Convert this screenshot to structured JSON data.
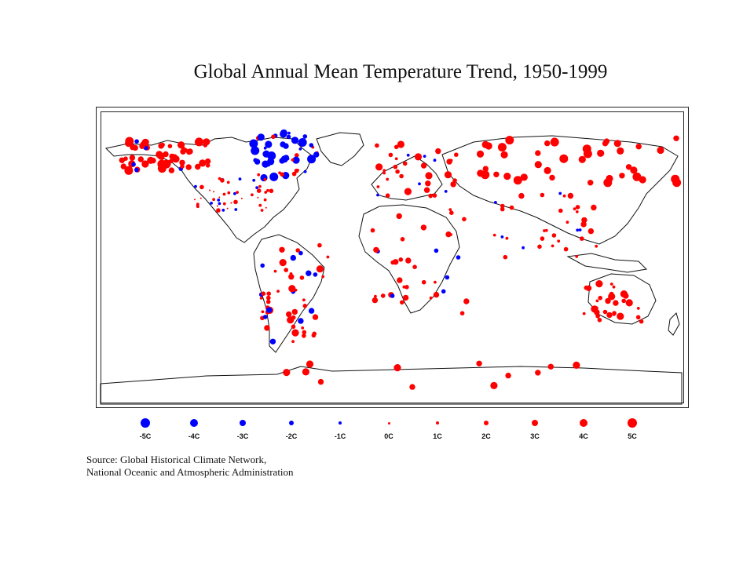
{
  "title": "Global Annual Mean Temperature Trend, 1950-1999",
  "colors": {
    "warming": "#ff0000",
    "cooling": "#0000ff",
    "coast": "#111111"
  },
  "legend": [
    {
      "label": "-5C",
      "value": -5,
      "color": "#0000ff"
    },
    {
      "label": "-4C",
      "value": -4,
      "color": "#0000ff"
    },
    {
      "label": "-3C",
      "value": -3,
      "color": "#0000ff"
    },
    {
      "label": "-2C",
      "value": -2,
      "color": "#0000ff"
    },
    {
      "label": "-1C",
      "value": -1,
      "color": "#0000ff"
    },
    {
      "label": "0C",
      "value": 0,
      "color": "#ff0000"
    },
    {
      "label": "1C",
      "value": 1,
      "color": "#ff0000"
    },
    {
      "label": "2C",
      "value": 2,
      "color": "#ff0000"
    },
    {
      "label": "3C",
      "value": 3,
      "color": "#ff0000"
    },
    {
      "label": "4C",
      "value": 4,
      "color": "#ff0000"
    },
    {
      "label": "5C",
      "value": 5,
      "color": "#ff0000"
    }
  ],
  "source": {
    "line1": "Source: Global Historical Climate Network,",
    "line2": "National Oceanic and Atmospheric Administration"
  },
  "chart_data": {
    "type": "scatter",
    "projection": "equirectangular world map",
    "value_unit": "C",
    "size_encodes": "trend magnitude",
    "color_encodes": "sign of trend (red warming, blue cooling)",
    "series": [
      {
        "region": "Alaska / NW Canada",
        "lon_range": [
          -165,
          -110
        ],
        "lat_range": [
          52,
          70
        ],
        "values": [
          3,
          4,
          3,
          2,
          4,
          3,
          -2,
          5,
          2,
          3
        ]
      },
      {
        "region": "Eastern Canada / Greenland",
        "lon_range": [
          -85,
          -45
        ],
        "lat_range": [
          48,
          75
        ],
        "values": [
          -4,
          -5,
          -3,
          -2,
          -1,
          -4,
          2,
          1
        ]
      },
      {
        "region": "United States",
        "lon_range": [
          -123,
          -72
        ],
        "lat_range": [
          28,
          48
        ],
        "values": [
          1,
          0,
          1,
          -1,
          0,
          1,
          2,
          -1
        ]
      },
      {
        "region": "South America",
        "lon_range": [
          -80,
          -38
        ],
        "lat_range": [
          -50,
          8
        ],
        "values": [
          2,
          3,
          1,
          -3,
          2,
          4,
          -2,
          1,
          2
        ]
      },
      {
        "region": "Europe",
        "lon_range": [
          -10,
          40
        ],
        "lat_range": [
          37,
          68
        ],
        "values": [
          2,
          3,
          2,
          1,
          4,
          -1
        ]
      },
      {
        "region": "Africa",
        "lon_range": [
          -15,
          45
        ],
        "lat_range": [
          -33,
          30
        ],
        "values": [
          2,
          3,
          1,
          -2,
          2,
          3
        ]
      },
      {
        "region": "Northern Asia",
        "lon_range": [
          40,
          175
        ],
        "lat_range": [
          45,
          72
        ],
        "values": [
          4,
          5,
          4,
          3,
          5,
          4,
          3
        ]
      },
      {
        "region": "South / SE Asia",
        "lon_range": [
          60,
          125
        ],
        "lat_range": [
          0,
          40
        ],
        "values": [
          1,
          2,
          1,
          2,
          3,
          -1
        ]
      },
      {
        "region": "Australia",
        "lon_range": [
          115,
          152
        ],
        "lat_range": [
          -38,
          -15
        ],
        "values": [
          2,
          3,
          2,
          4,
          1
        ]
      },
      {
        "region": "Antarctica",
        "lon_range": [
          -70,
          120
        ],
        "lat_range": [
          -78,
          -62
        ],
        "values": [
          3,
          4
        ]
      }
    ]
  }
}
